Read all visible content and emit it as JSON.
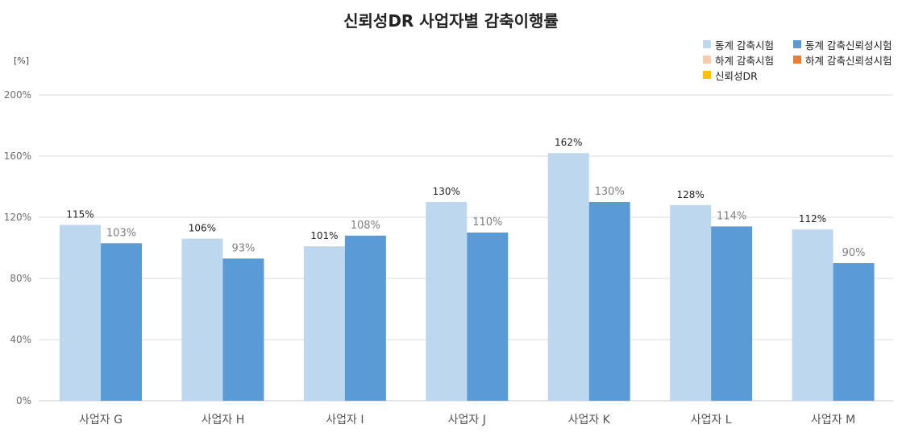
{
  "chart_data": {
    "type": "bar",
    "title": "신뢰성DR 사업자별 감축이행률",
    "unit_label": "[%]",
    "ylim": [
      0,
      200
    ],
    "y_ticks": [
      {
        "value": 0,
        "label": "0%"
      },
      {
        "value": 40,
        "label": "40%"
      },
      {
        "value": 80,
        "label": "80%"
      },
      {
        "value": 120,
        "label": "120%"
      },
      {
        "value": 160,
        "label": "160%"
      },
      {
        "value": 200,
        "label": "200%"
      }
    ],
    "grid": true,
    "legend_position": "top-right",
    "categories": [
      "사업자 G",
      "사업자 H",
      "사업자 I",
      "사업자 J",
      "사업자 K",
      "사업자 L",
      "사업자 M"
    ],
    "series": [
      {
        "name": "동계 감축시험",
        "color": "#BDD7EE",
        "values": [
          115,
          106,
          101,
          130,
          162,
          128,
          112
        ],
        "labels": [
          "115%",
          "106%",
          "101%",
          "130%",
          "162%",
          "128%",
          "112%"
        ],
        "label_color": "#222222"
      },
      {
        "name": "동계 감축신뢰성시험",
        "color": "#5B9BD5",
        "values": [
          103,
          93,
          108,
          110,
          130,
          114,
          90
        ],
        "labels": [
          "103%",
          "93%",
          "108%",
          "110%",
          "130%",
          "114%",
          "90%"
        ],
        "label_color": "#7F7F7F"
      }
    ],
    "legend": [
      {
        "name": "동계 감축시험",
        "color": "#BDD7EE"
      },
      {
        "name": "동계 감축신뢰성시험",
        "color": "#5B9BD5"
      },
      {
        "name": "하계 감축시험",
        "color": "#F8CBAD"
      },
      {
        "name": "하계 감축신뢰성시험",
        "color": "#ED7D31"
      },
      {
        "name": "신뢰성DR",
        "color": "#FFC000"
      }
    ]
  }
}
